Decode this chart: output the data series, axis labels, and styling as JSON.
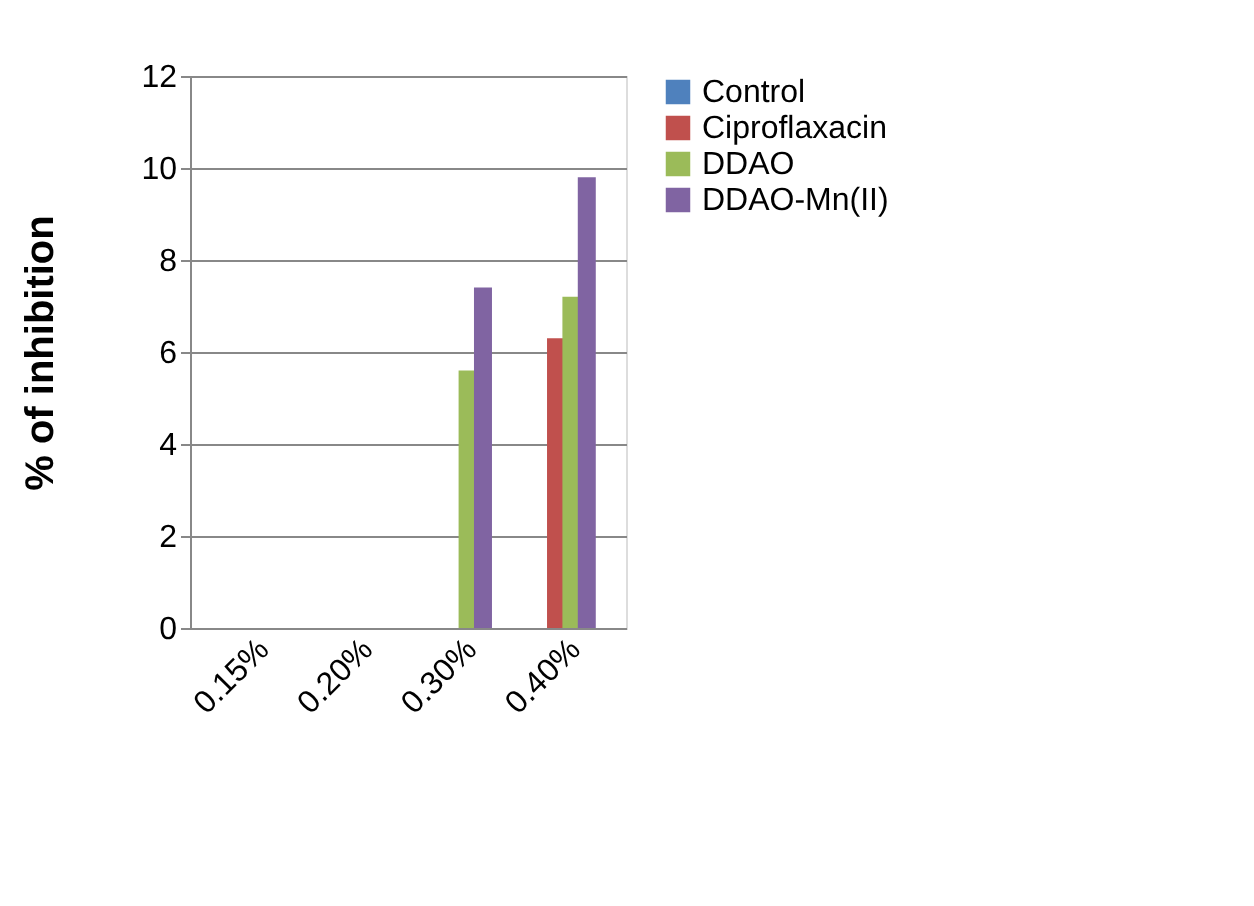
{
  "chart_data": {
    "type": "bar",
    "ylabel": "% of inhibition",
    "categories": [
      "0.15%",
      "0.20%",
      "0.30%",
      "0.40%"
    ],
    "series": [
      {
        "name": "Control",
        "color": "#4f81bd",
        "values": [
          0,
          0,
          0,
          0
        ]
      },
      {
        "name": "Ciproflaxacin",
        "color": "#c0504d",
        "values": [
          0,
          0,
          0,
          6.3
        ]
      },
      {
        "name": "DDAO",
        "color": "#9bbb59",
        "values": [
          0,
          0,
          5.6,
          7.2
        ]
      },
      {
        "name": "DDAO-Mn(II)",
        "color": "#8064a2",
        "values": [
          0,
          0,
          7.4,
          9.8
        ]
      }
    ],
    "ylim": [
      0,
      12
    ],
    "yticks": [
      0,
      2,
      4,
      6,
      8,
      10,
      12
    ],
    "grid": "y",
    "legend": "right"
  }
}
